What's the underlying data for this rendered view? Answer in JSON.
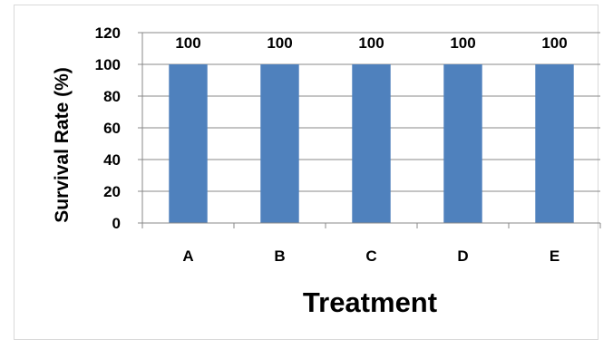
{
  "chart_data": {
    "type": "bar",
    "title": "",
    "xlabel": "Treatment",
    "ylabel": "Survival Rate (%)",
    "categories": [
      "A",
      "B",
      "C",
      "D",
      "E"
    ],
    "series": [
      {
        "values": [
          100,
          100,
          100,
          100,
          100
        ],
        "color": "#4f81bd"
      }
    ],
    "data_labels": [
      "100",
      "100",
      "100",
      "100",
      "100"
    ],
    "ylim": [
      0,
      120
    ],
    "yticks": [
      0,
      20,
      40,
      60,
      80,
      100,
      120
    ],
    "grid": true,
    "legend": "none"
  }
}
